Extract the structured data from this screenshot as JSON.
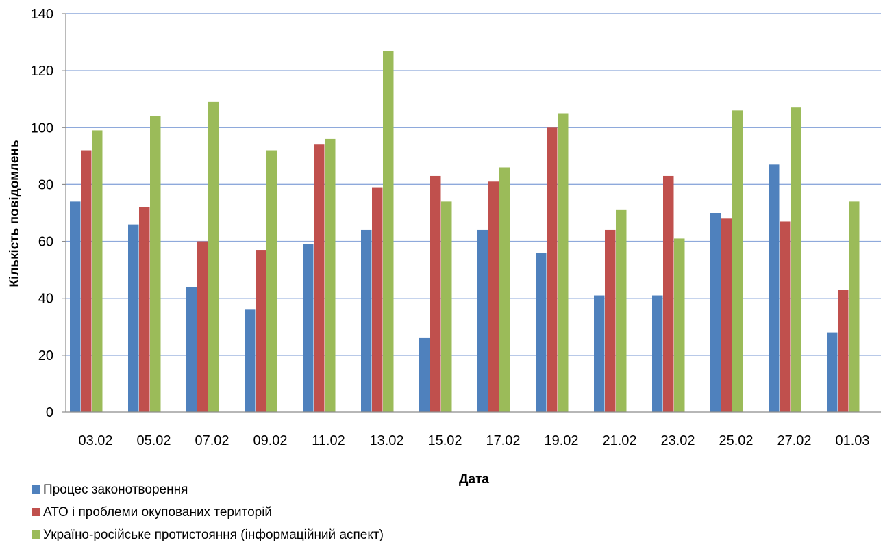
{
  "chart_data": {
    "type": "bar",
    "xlabel": "Дата",
    "ylabel": "Кількість повідомлень",
    "ylim": [
      0,
      140
    ],
    "y_ticks": [
      "0",
      "20",
      "40",
      "60",
      "80",
      "100",
      "120",
      "140"
    ],
    "grid": true,
    "legend_position": "bottom-left",
    "categories": [
      "03.02",
      "05.02",
      "07.02",
      "09.02",
      "11.02",
      "13.02",
      "15.02",
      "17.02",
      "19.02",
      "21.02",
      "23.02",
      "25.02",
      "27.02",
      "01.03"
    ],
    "series": [
      {
        "name": "Процес законотворення",
        "color": "#4F81BD",
        "values": [
          74,
          66,
          44,
          36,
          59,
          64,
          26,
          64,
          56,
          41,
          41,
          70,
          87,
          28
        ]
      },
      {
        "name": "АТО і проблеми окупованих територій",
        "color": "#C0504D",
        "values": [
          92,
          72,
          60,
          57,
          94,
          79,
          83,
          81,
          100,
          64,
          83,
          68,
          67,
          43
        ]
      },
      {
        "name": "Україно-російське протистояння (інформаційний аспект)",
        "color": "#9BBB59",
        "values": [
          99,
          104,
          109,
          92,
          96,
          127,
          74,
          86,
          105,
          71,
          61,
          106,
          107,
          74
        ]
      }
    ]
  },
  "style": {
    "grid_color": "#8EA9DB",
    "axis_color": "#8C8C8C"
  }
}
